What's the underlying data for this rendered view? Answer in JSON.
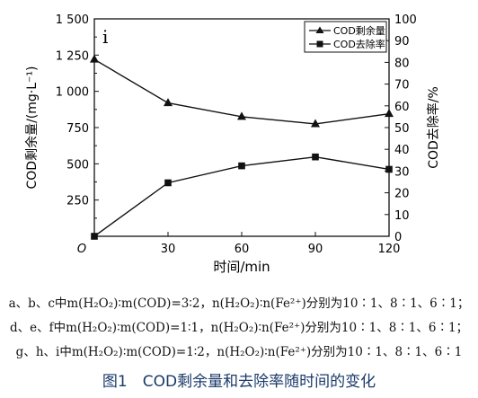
{
  "chart_data": {
    "type": "line",
    "panel_label": "i",
    "x": [
      0,
      30,
      60,
      90,
      120
    ],
    "xticks": [
      "O",
      "30",
      "60",
      "90",
      "120"
    ],
    "xlabel": "时间/min",
    "xlim": [
      0,
      120
    ],
    "ylabel_left": "COD剩余量/(mg·L⁻¹)",
    "ylim_left": [
      0,
      1500
    ],
    "yticks_left": [
      "0",
      "250",
      "500",
      "750",
      "1 000",
      "1 250",
      "1 500"
    ],
    "ylabel_right": "COD去除率/%",
    "ylim_right": [
      0,
      100
    ],
    "yticks_right": [
      "0",
      "10",
      "20",
      "30",
      "40",
      "50",
      "60",
      "70",
      "80",
      "90",
      "100"
    ],
    "series": [
      {
        "name": "COD剩余量",
        "axis": "left",
        "marker": "triangle",
        "values": [
          1220,
          920,
          825,
          775,
          845
        ]
      },
      {
        "name": "COD去除率",
        "axis": "right",
        "marker": "square",
        "values": [
          0,
          24.6,
          32.4,
          36.5,
          30.8
        ]
      }
    ],
    "legend_position": "top-right",
    "grid": false
  },
  "notes": [
    "a、b、c中m(H₂O₂)∶m(COD)=3∶2，n(H₂O₂)∶n(Fe²⁺)分别为10∶1、8∶1、6∶1；",
    "d、e、f中m(H₂O₂)∶m(COD)=1∶1，n(H₂O₂)∶n(Fe²⁺)分别为10∶1、8∶1、6∶1；",
    "g、h、i中m(H₂O₂)∶m(COD)=1∶2，n(H₂O₂)∶n(Fe²⁺)分别为10∶1、8∶1、6∶1"
  ],
  "figure_caption": "图1　COD剩余量和去除率随时间的变化"
}
